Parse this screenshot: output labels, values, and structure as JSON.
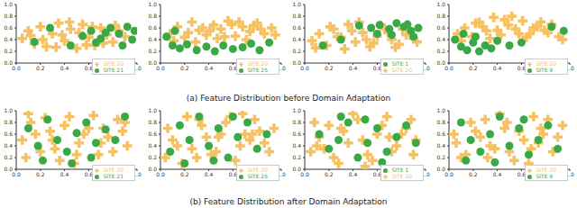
{
  "captions": [
    "(a) Feature Distribution before Domain Adaptation",
    "(b) Feature Distribution after Domain Adaptation"
  ],
  "chart_data": [
    {
      "type": "scatter",
      "xlim": [
        0,
        1
      ],
      "ylim": [
        0,
        1
      ],
      "xticks": [
        {
          "value": 0,
          "label": "0.0"
        },
        0.2,
        0.4,
        0.6,
        0.8,
        {
          "value": 1,
          "label": "1.0"
        }
      ],
      "yticks": [
        {
          "value": 0,
          "label": "0.0"
        },
        0.2,
        0.4,
        0.6,
        0.8,
        {
          "value": 1,
          "label": "1.0"
        }
      ],
      "legend": "lower right",
      "series": [
        {
          "name": "SITE 20",
          "color": "#f5c163",
          "marker": "plus",
          "x": [
            0.05,
            0.1,
            0.15,
            0.2,
            0.25,
            0.3,
            0.35,
            0.4,
            0.45,
            0.5,
            0.55,
            0.6,
            0.65,
            0.7,
            0.75,
            0.8,
            0.85,
            0.9,
            0.12,
            0.22,
            0.33,
            0.44,
            0.52,
            0.63,
            0.72,
            0.82,
            0.38,
            0.58
          ],
          "y": [
            0.42,
            0.55,
            0.33,
            0.62,
            0.28,
            0.5,
            0.68,
            0.38,
            0.58,
            0.25,
            0.66,
            0.44,
            0.3,
            0.6,
            0.48,
            0.36,
            0.55,
            0.45,
            0.47,
            0.4,
            0.27,
            0.7,
            0.52,
            0.62,
            0.34,
            0.64,
            0.48,
            0.31
          ]
        },
        {
          "name": "SITE 21",
          "color": "#3aa845",
          "marker": "circle",
          "x": [
            0.62,
            0.7,
            0.78,
            0.85,
            0.92,
            0.96,
            0.66,
            0.88,
            0.74,
            0.15,
            0.28,
            0.45,
            0.55,
            0.98
          ],
          "y": [
            0.55,
            0.42,
            0.6,
            0.5,
            0.62,
            0.4,
            0.35,
            0.3,
            0.52,
            0.36,
            0.6,
            0.3,
            0.46,
            0.55
          ]
        }
      ]
    },
    {
      "type": "scatter",
      "xlim": [
        0,
        1
      ],
      "ylim": [
        0,
        1
      ],
      "xticks": [
        {
          "value": 0,
          "label": "0.0"
        },
        0.2,
        0.4,
        0.6,
        0.8,
        {
          "value": 1,
          "label": "1.0"
        }
      ],
      "yticks": [
        {
          "value": 0,
          "label": "0.0"
        },
        0.2,
        0.4,
        0.6,
        0.8,
        {
          "value": 1,
          "label": "1.0"
        }
      ],
      "legend": "lower right",
      "series": [
        {
          "name": "SITE 20",
          "color": "#f5c163",
          "marker": "plus",
          "x": [
            0.08,
            0.14,
            0.2,
            0.26,
            0.32,
            0.38,
            0.44,
            0.5,
            0.56,
            0.62,
            0.68,
            0.74,
            0.8,
            0.86,
            0.92,
            0.11,
            0.23,
            0.35,
            0.47,
            0.59,
            0.71,
            0.83,
            0.95,
            0.29,
            0.41,
            0.53,
            0.65,
            0.77
          ],
          "y": [
            0.5,
            0.62,
            0.44,
            0.7,
            0.56,
            0.48,
            0.65,
            0.58,
            0.72,
            0.46,
            0.62,
            0.54,
            0.68,
            0.5,
            0.6,
            0.38,
            0.52,
            0.6,
            0.42,
            0.66,
            0.4,
            0.58,
            0.48,
            0.36,
            0.55,
            0.45,
            0.7,
            0.64
          ]
        },
        {
          "name": "SITE 25",
          "color": "#3aa845",
          "marker": "circle",
          "x": [
            0.05,
            0.1,
            0.16,
            0.22,
            0.3,
            0.38,
            0.45,
            0.52,
            0.6,
            0.68,
            0.75,
            0.82,
            0.9,
            0.12
          ],
          "y": [
            0.45,
            0.3,
            0.25,
            0.32,
            0.22,
            0.28,
            0.2,
            0.3,
            0.24,
            0.27,
            0.33,
            0.22,
            0.35,
            0.55
          ]
        }
      ]
    },
    {
      "type": "scatter",
      "xlim": [
        0,
        1
      ],
      "ylim": [
        0,
        1
      ],
      "xticks": [
        {
          "value": 0,
          "label": "0.0"
        },
        0.2,
        0.4,
        0.6,
        0.8,
        {
          "value": 1,
          "label": "1.0"
        }
      ],
      "yticks": [
        {
          "value": 0,
          "label": "0.0"
        },
        0.2,
        0.4,
        0.6,
        0.8,
        {
          "value": 1,
          "label": "1.0"
        }
      ],
      "legend": "lower right",
      "series": [
        {
          "name": "SITE 20",
          "color": "#f5c163",
          "marker": "plus",
          "x": [
            0.06,
            0.12,
            0.18,
            0.24,
            0.3,
            0.36,
            0.42,
            0.48,
            0.54,
            0.6,
            0.66,
            0.72,
            0.78,
            0.84,
            0.9,
            0.09,
            0.21,
            0.33,
            0.45,
            0.57,
            0.69,
            0.81,
            0.93,
            0.27,
            0.39,
            0.51,
            0.63,
            0.75
          ],
          "y": [
            0.38,
            0.5,
            0.3,
            0.58,
            0.44,
            0.66,
            0.36,
            0.52,
            0.28,
            0.46,
            0.6,
            0.4,
            0.32,
            0.48,
            0.42,
            0.26,
            0.62,
            0.24,
            0.7,
            0.34,
            0.52,
            0.58,
            0.36,
            0.45,
            0.55,
            0.4,
            0.64,
            0.27
          ]
        },
        {
          "name": "SITE 1",
          "color": "#3aa845",
          "marker": "circle",
          "x": [
            0.55,
            0.62,
            0.7,
            0.76,
            0.82,
            0.88,
            0.94,
            0.6,
            0.72,
            0.85,
            0.45,
            0.3,
            0.15,
            0.9
          ],
          "y": [
            0.6,
            0.65,
            0.58,
            0.68,
            0.62,
            0.55,
            0.6,
            0.5,
            0.48,
            0.66,
            0.64,
            0.4,
            0.3,
            0.45
          ]
        }
      ]
    },
    {
      "type": "scatter",
      "xlim": [
        0,
        1
      ],
      "ylim": [
        0,
        1
      ],
      "xticks": [
        {
          "value": 0,
          "label": "0.0"
        },
        0.2,
        0.4,
        0.6,
        0.8,
        {
          "value": 1,
          "label": "1.0"
        }
      ],
      "yticks": [
        {
          "value": 0,
          "label": "0.0"
        },
        0.2,
        0.4,
        0.6,
        0.8,
        {
          "value": 1,
          "label": "1.0"
        }
      ],
      "legend": "lower right",
      "series": [
        {
          "name": "SITE 20",
          "color": "#f5c163",
          "marker": "plus",
          "x": [
            0.07,
            0.13,
            0.19,
            0.25,
            0.31,
            0.37,
            0.43,
            0.49,
            0.55,
            0.61,
            0.67,
            0.73,
            0.79,
            0.85,
            0.91,
            0.1,
            0.22,
            0.34,
            0.46,
            0.58,
            0.7,
            0.82,
            0.94,
            0.28,
            0.4,
            0.52,
            0.64,
            0.76
          ],
          "y": [
            0.5,
            0.6,
            0.45,
            0.7,
            0.55,
            0.78,
            0.48,
            0.65,
            0.58,
            0.72,
            0.5,
            0.62,
            0.56,
            0.66,
            0.45,
            0.38,
            0.68,
            0.42,
            0.74,
            0.5,
            0.6,
            0.52,
            0.4,
            0.62,
            0.56,
            0.8,
            0.44,
            0.7
          ]
        },
        {
          "name": "SITE 9",
          "color": "#3aa845",
          "marker": "circle",
          "x": [
            0.05,
            0.1,
            0.15,
            0.2,
            0.25,
            0.3,
            0.35,
            0.4,
            0.5,
            0.12,
            0.22,
            0.6,
            0.85,
            0.95
          ],
          "y": [
            0.4,
            0.28,
            0.22,
            0.35,
            0.2,
            0.3,
            0.25,
            0.38,
            0.3,
            0.5,
            0.45,
            0.35,
            0.62,
            0.55
          ]
        }
      ]
    },
    {
      "type": "scatter",
      "xlim": [
        0,
        1
      ],
      "ylim": [
        0,
        1
      ],
      "xticks": [
        {
          "value": 0,
          "label": "0.0"
        },
        0.2,
        0.4,
        0.6,
        0.8,
        {
          "value": 1,
          "label": "1.0"
        }
      ],
      "yticks": [
        {
          "value": 0,
          "label": "0.0"
        },
        0.2,
        0.4,
        0.6,
        0.8,
        {
          "value": 1,
          "label": "1.0"
        }
      ],
      "legend": "lower right",
      "series": [
        {
          "name": "SITE 20",
          "color": "#f5c163",
          "marker": "plus",
          "x": [
            0.05,
            0.12,
            0.2,
            0.28,
            0.36,
            0.44,
            0.52,
            0.6,
            0.68,
            0.76,
            0.84,
            0.92,
            0.08,
            0.16,
            0.24,
            0.32,
            0.4,
            0.48,
            0.56,
            0.64,
            0.72,
            0.8,
            0.88,
            0.1,
            0.3,
            0.5,
            0.7,
            0.9
          ],
          "y": [
            0.5,
            0.8,
            0.3,
            0.65,
            0.15,
            0.9,
            0.45,
            0.7,
            0.25,
            0.55,
            0.85,
            0.4,
            0.2,
            0.6,
            0.88,
            0.35,
            0.75,
            0.1,
            0.6,
            0.92,
            0.7,
            0.3,
            0.65,
            0.95,
            0.5,
            0.25,
            0.45,
            0.8
          ]
        },
        {
          "name": "SITE 21",
          "color": "#3aa845",
          "marker": "circle",
          "x": [
            0.1,
            0.18,
            0.26,
            0.34,
            0.42,
            0.5,
            0.58,
            0.66,
            0.74,
            0.82,
            0.9,
            0.22,
            0.46,
            0.62
          ],
          "y": [
            0.7,
            0.4,
            0.85,
            0.5,
            0.3,
            0.62,
            0.8,
            0.45,
            0.68,
            0.5,
            0.9,
            0.15,
            0.1,
            0.2
          ]
        }
      ]
    },
    {
      "type": "scatter",
      "xlim": [
        0,
        1
      ],
      "ylim": [
        0,
        1
      ],
      "xticks": [
        {
          "value": 0,
          "label": "0.0"
        },
        0.2,
        0.4,
        0.6,
        0.8,
        {
          "value": 1,
          "label": "1.0"
        }
      ],
      "yticks": [
        {
          "value": 0,
          "label": "0.0"
        },
        0.2,
        0.4,
        0.6,
        0.8,
        {
          "value": 1,
          "label": "1.0"
        }
      ],
      "legend": "lower right",
      "series": [
        {
          "name": "SITE 20",
          "color": "#f5c163",
          "marker": "plus",
          "x": [
            0.06,
            0.14,
            0.22,
            0.3,
            0.38,
            0.46,
            0.54,
            0.62,
            0.7,
            0.78,
            0.86,
            0.94,
            0.1,
            0.18,
            0.26,
            0.34,
            0.42,
            0.5,
            0.58,
            0.66,
            0.74,
            0.82,
            0.9,
            0.04,
            0.32,
            0.48,
            0.68,
            0.76
          ],
          "y": [
            0.7,
            0.4,
            0.9,
            0.2,
            0.55,
            0.3,
            0.8,
            0.15,
            0.6,
            0.85,
            0.45,
            0.7,
            0.5,
            0.1,
            0.35,
            0.75,
            0.25,
            0.6,
            0.9,
            0.4,
            0.5,
            0.65,
            0.3,
            0.2,
            0.85,
            0.55,
            0.95,
            0.6
          ]
        },
        {
          "name": "SITE 25",
          "color": "#3aa845",
          "marker": "circle",
          "x": [
            0.08,
            0.16,
            0.24,
            0.32,
            0.4,
            0.48,
            0.56,
            0.64,
            0.72,
            0.8,
            0.88,
            0.2,
            0.44,
            0.6
          ],
          "y": [
            0.3,
            0.75,
            0.5,
            0.9,
            0.4,
            0.7,
            0.2,
            0.55,
            0.8,
            0.35,
            0.6,
            0.1,
            0.15,
            0.9
          ]
        }
      ]
    },
    {
      "type": "scatter",
      "xlim": [
        0,
        1
      ],
      "ylim": [
        0,
        1
      ],
      "xticks": [
        {
          "value": 0,
          "label": "0.0"
        },
        0.2,
        0.4,
        0.6,
        0.8,
        {
          "value": 1,
          "label": "1.0"
        }
      ],
      "yticks": [
        {
          "value": 0,
          "label": "0.0"
        },
        0.2,
        0.4,
        0.6,
        0.8,
        {
          "value": 1,
          "label": "1.0"
        }
      ],
      "legend": "lower right",
      "series": [
        {
          "name": "SITE 20",
          "color": "#f5c163",
          "marker": "plus",
          "x": [
            0.05,
            0.12,
            0.2,
            0.28,
            0.36,
            0.44,
            0.52,
            0.6,
            0.68,
            0.76,
            0.84,
            0.92,
            0.08,
            0.16,
            0.24,
            0.32,
            0.4,
            0.48,
            0.56,
            0.64,
            0.72,
            0.8,
            0.88,
            0.1,
            0.3,
            0.5,
            0.7,
            0.9
          ],
          "y": [
            0.3,
            0.55,
            0.75,
            0.1,
            0.45,
            0.85,
            0.25,
            0.6,
            0.9,
            0.4,
            0.7,
            0.5,
            0.8,
            0.35,
            0.2,
            0.65,
            0.95,
            0.5,
            0.15,
            0.75,
            0.3,
            0.6,
            0.85,
            0.4,
            0.7,
            0.05,
            0.55,
            0.25
          ]
        },
        {
          "name": "SITE 1",
          "color": "#3aa845",
          "marker": "circle",
          "x": [
            0.12,
            0.2,
            0.28,
            0.36,
            0.44,
            0.52,
            0.6,
            0.68,
            0.76,
            0.84,
            0.92,
            0.3,
            0.5,
            0.64
          ],
          "y": [
            0.6,
            0.35,
            0.5,
            0.8,
            0.2,
            0.45,
            0.7,
            0.3,
            0.55,
            0.75,
            0.45,
            0.9,
            0.85,
            0.12
          ]
        }
      ]
    },
    {
      "type": "scatter",
      "xlim": [
        0,
        1
      ],
      "ylim": [
        0,
        1
      ],
      "xticks": [
        {
          "value": 0,
          "label": "0.0"
        },
        0.2,
        0.4,
        0.6,
        0.8,
        {
          "value": 1,
          "label": "1.0"
        }
      ],
      "yticks": [
        {
          "value": 0,
          "label": "0.0"
        },
        0.2,
        0.4,
        0.6,
        0.8,
        {
          "value": 1,
          "label": "1.0"
        }
      ],
      "legend": "lower right",
      "series": [
        {
          "name": "SITE 20",
          "color": "#f5c163",
          "marker": "plus",
          "x": [
            0.06,
            0.14,
            0.22,
            0.3,
            0.38,
            0.46,
            0.54,
            0.62,
            0.7,
            0.78,
            0.86,
            0.94,
            0.1,
            0.18,
            0.26,
            0.34,
            0.42,
            0.5,
            0.58,
            0.66,
            0.74,
            0.82,
            0.9,
            0.04,
            0.32,
            0.48,
            0.68,
            0.76
          ],
          "y": [
            0.45,
            0.25,
            0.65,
            0.85,
            0.35,
            0.7,
            0.15,
            0.5,
            0.9,
            0.6,
            0.3,
            0.75,
            0.2,
            0.8,
            0.55,
            0.4,
            0.95,
            0.3,
            0.65,
            0.1,
            0.45,
            0.85,
            0.55,
            0.6,
            0.2,
            0.8,
            0.35,
            0.7
          ]
        },
        {
          "name": "SITE 9",
          "color": "#3aa845",
          "marker": "circle",
          "x": [
            0.1,
            0.18,
            0.26,
            0.34,
            0.42,
            0.5,
            0.58,
            0.66,
            0.74,
            0.82,
            0.9,
            0.14,
            0.38,
            0.62
          ],
          "y": [
            0.8,
            0.5,
            0.3,
            0.6,
            0.9,
            0.4,
            0.7,
            0.25,
            0.5,
            0.75,
            0.35,
            0.15,
            0.12,
            0.85
          ]
        }
      ]
    }
  ]
}
